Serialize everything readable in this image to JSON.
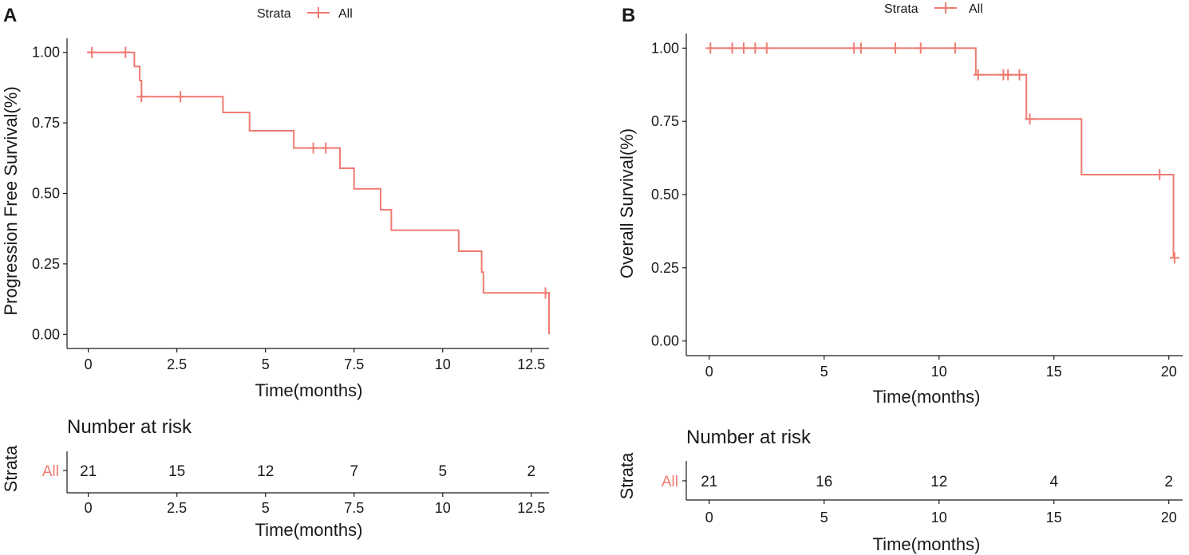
{
  "colors": {
    "accent": "#f07b72",
    "axis": "#1a1a1a"
  },
  "chart_data": [
    {
      "type": "line",
      "panel": "A",
      "legend": {
        "title": "Strata",
        "label": "All"
      },
      "xlabel": "Time(months)",
      "ylabel": "Progression Free Survival(%)",
      "xlim": [
        -0.6,
        13.0
      ],
      "ylim": [
        -0.05,
        1.05
      ],
      "xticks": [
        0,
        2.5,
        5,
        7.5,
        10,
        12.5
      ],
      "xtick_labels": [
        "0",
        "2.5",
        "5",
        "7.5",
        "10",
        "12.5"
      ],
      "yticks": [
        0,
        0.25,
        0.5,
        0.75,
        1.0
      ],
      "ytick_labels": [
        "0.00",
        "0.25",
        "0.50",
        "0.75",
        "1.00"
      ],
      "step_points": [
        [
          0,
          1.0
        ],
        [
          1.3,
          1.0
        ],
        [
          1.3,
          0.95
        ],
        [
          1.45,
          0.95
        ],
        [
          1.45,
          0.9
        ],
        [
          1.5,
          0.9
        ],
        [
          1.5,
          0.843
        ],
        [
          3.8,
          0.843
        ],
        [
          3.8,
          0.787
        ],
        [
          4.55,
          0.787
        ],
        [
          4.55,
          0.722
        ],
        [
          5.8,
          0.722
        ],
        [
          5.8,
          0.661
        ],
        [
          7.1,
          0.661
        ],
        [
          7.1,
          0.589
        ],
        [
          7.5,
          0.589
        ],
        [
          7.5,
          0.516
        ],
        [
          8.25,
          0.516
        ],
        [
          8.25,
          0.442
        ],
        [
          8.55,
          0.442
        ],
        [
          8.55,
          0.369
        ],
        [
          10.45,
          0.369
        ],
        [
          10.45,
          0.295
        ],
        [
          11.1,
          0.295
        ],
        [
          11.1,
          0.221
        ],
        [
          11.15,
          0.221
        ],
        [
          11.15,
          0.147
        ],
        [
          13.0,
          0.147
        ],
        [
          13.0,
          0.0
        ]
      ],
      "censors": [
        [
          0.1,
          1.0
        ],
        [
          1.05,
          1.0
        ],
        [
          1.5,
          0.843
        ],
        [
          2.6,
          0.843
        ],
        [
          6.35,
          0.661
        ],
        [
          6.7,
          0.661
        ],
        [
          12.9,
          0.147
        ]
      ],
      "risk_table": {
        "title": "Number at risk",
        "ylabel": "Strata",
        "row_label": "All",
        "times": [
          0,
          2.5,
          5,
          7.5,
          10,
          12.5
        ],
        "counts": [
          "21",
          "15",
          "12",
          "7",
          "5",
          "2"
        ],
        "xlabel": "Time(months)",
        "xtick_labels": [
          "0",
          "2.5",
          "5",
          "7.5",
          "10",
          "12.5"
        ]
      }
    },
    {
      "type": "line",
      "panel": "B",
      "legend": {
        "title": "Strata",
        "label": "All"
      },
      "xlabel": "Time(months)",
      "ylabel": "Overall Survival(%)",
      "xlim": [
        -1.0,
        20.6
      ],
      "ylim": [
        -0.05,
        1.05
      ],
      "xticks": [
        0,
        5,
        10,
        15,
        20
      ],
      "xtick_labels": [
        "0",
        "5",
        "10",
        "15",
        "20"
      ],
      "yticks": [
        0,
        0.25,
        0.5,
        0.75,
        1.0
      ],
      "ytick_labels": [
        "0.00",
        "0.25",
        "0.50",
        "0.75",
        "1.00"
      ],
      "step_points": [
        [
          0,
          1.0
        ],
        [
          11.6,
          1.0
        ],
        [
          11.6,
          0.909
        ],
        [
          13.8,
          0.909
        ],
        [
          13.8,
          0.758
        ],
        [
          16.2,
          0.758
        ],
        [
          16.2,
          0.568
        ],
        [
          20.2,
          0.568
        ],
        [
          20.2,
          0.284
        ]
      ],
      "censors": [
        [
          0.05,
          1.0
        ],
        [
          1.0,
          1.0
        ],
        [
          1.5,
          1.0
        ],
        [
          2.0,
          1.0
        ],
        [
          2.5,
          1.0
        ],
        [
          6.3,
          1.0
        ],
        [
          6.6,
          1.0
        ],
        [
          8.1,
          1.0
        ],
        [
          9.2,
          1.0
        ],
        [
          10.7,
          1.0
        ],
        [
          11.7,
          0.909
        ],
        [
          12.8,
          0.909
        ],
        [
          13.0,
          0.909
        ],
        [
          13.5,
          0.909
        ],
        [
          13.95,
          0.758
        ],
        [
          19.6,
          0.568
        ],
        [
          20.25,
          0.284
        ]
      ],
      "risk_table": {
        "title": "Number at risk",
        "ylabel": "Strata",
        "row_label": "All",
        "times": [
          0,
          5,
          10,
          15,
          20
        ],
        "counts": [
          "21",
          "16",
          "12",
          "4",
          "2"
        ],
        "xlabel": "Time(months)",
        "xtick_labels": [
          "0",
          "5",
          "10",
          "15",
          "20"
        ]
      }
    }
  ]
}
